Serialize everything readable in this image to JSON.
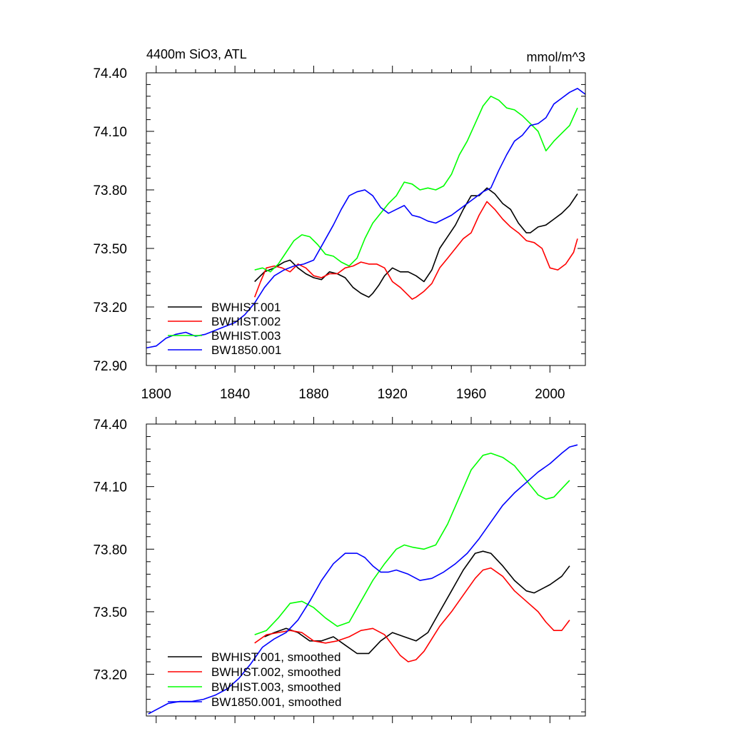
{
  "figure": {
    "title_left": "4400m SiO3, ATL",
    "title_right": "mmol/m^3"
  },
  "chart_data": [
    {
      "type": "line",
      "title": "4400m SiO3, ATL",
      "units": "mmol/m^3",
      "xlim": [
        1795,
        2018
      ],
      "ylim": [
        72.9,
        74.4
      ],
      "x_ticks": [
        1800,
        1840,
        1880,
        1920,
        1960,
        2000
      ],
      "x_tick_labels": [
        "1800",
        "1840",
        "1880",
        "1920",
        "1960",
        "2000"
      ],
      "y_ticks": [
        72.9,
        73.2,
        73.5,
        73.8,
        74.1,
        74.4
      ],
      "y_tick_labels": [
        "72.90",
        "73.20",
        "73.50",
        "73.80",
        "74.10",
        "74.40"
      ],
      "legend_position": "bottom-left",
      "series": [
        {
          "name": "BWHIST.001",
          "color": "#000000",
          "x": [
            1850,
            1855,
            1860,
            1865,
            1868,
            1872,
            1876,
            1880,
            1884,
            1888,
            1892,
            1896,
            1900,
            1904,
            1908,
            1910,
            1913,
            1916,
            1920,
            1924,
            1928,
            1932,
            1936,
            1940,
            1944,
            1948,
            1952,
            1956,
            1960,
            1964,
            1968,
            1972,
            1976,
            1980,
            1984,
            1988,
            1990,
            1994,
            1998,
            2002,
            2006,
            2010,
            2014
          ],
          "y": [
            73.33,
            73.38,
            73.4,
            73.43,
            73.44,
            73.4,
            73.37,
            73.35,
            73.34,
            73.38,
            73.37,
            73.35,
            73.3,
            73.27,
            73.25,
            73.27,
            73.31,
            73.36,
            73.4,
            73.38,
            73.38,
            73.36,
            73.33,
            73.39,
            73.5,
            73.56,
            73.62,
            73.7,
            73.77,
            73.77,
            73.81,
            73.78,
            73.73,
            73.7,
            73.63,
            73.58,
            73.58,
            73.61,
            73.62,
            73.65,
            73.68,
            73.72,
            73.78
          ]
        },
        {
          "name": "BWHIST.002",
          "color": "#ff0000",
          "x": [
            1850,
            1853,
            1856,
            1860,
            1864,
            1868,
            1872,
            1876,
            1880,
            1884,
            1888,
            1892,
            1896,
            1900,
            1904,
            1908,
            1912,
            1916,
            1920,
            1924,
            1928,
            1930,
            1932,
            1936,
            1940,
            1944,
            1948,
            1952,
            1956,
            1960,
            1964,
            1968,
            1972,
            1976,
            1980,
            1984,
            1988,
            1992,
            1996,
            2000,
            2004,
            2008,
            2012,
            2014
          ],
          "y": [
            73.25,
            73.33,
            73.4,
            73.41,
            73.4,
            73.38,
            73.42,
            73.4,
            73.36,
            73.35,
            73.37,
            73.37,
            73.4,
            73.41,
            73.43,
            73.42,
            73.42,
            73.4,
            73.33,
            73.3,
            73.26,
            73.24,
            73.25,
            73.28,
            73.32,
            73.4,
            73.45,
            73.5,
            73.55,
            73.58,
            73.67,
            73.74,
            73.7,
            73.65,
            73.61,
            73.58,
            73.54,
            73.53,
            73.5,
            73.4,
            73.39,
            73.42,
            73.48,
            73.55
          ]
        },
        {
          "name": "BWHIST.003",
          "color": "#00ff00",
          "x": [
            1850,
            1854,
            1858,
            1862,
            1866,
            1870,
            1874,
            1878,
            1882,
            1886,
            1890,
            1894,
            1898,
            1902,
            1906,
            1910,
            1914,
            1918,
            1922,
            1926,
            1930,
            1934,
            1938,
            1942,
            1946,
            1950,
            1954,
            1958,
            1962,
            1966,
            1970,
            1974,
            1978,
            1982,
            1986,
            1990,
            1994,
            1998,
            2002,
            2006,
            2010,
            2014
          ],
          "y": [
            73.39,
            73.4,
            73.38,
            73.42,
            73.48,
            73.54,
            73.57,
            73.56,
            73.52,
            73.47,
            73.46,
            73.43,
            73.41,
            73.45,
            73.55,
            73.63,
            73.68,
            73.73,
            73.77,
            73.84,
            73.83,
            73.8,
            73.81,
            73.8,
            73.82,
            73.88,
            73.98,
            74.05,
            74.14,
            74.23,
            74.28,
            74.26,
            74.22,
            74.21,
            74.18,
            74.14,
            74.1,
            74.0,
            74.05,
            74.09,
            74.13,
            74.22
          ]
        },
        {
          "name": "BW1850.001",
          "color": "#0000ff",
          "x": [
            1795,
            1800,
            1805,
            1810,
            1815,
            1820,
            1825,
            1830,
            1835,
            1840,
            1845,
            1850,
            1855,
            1860,
            1865,
            1870,
            1875,
            1880,
            1885,
            1890,
            1894,
            1898,
            1902,
            1906,
            1910,
            1914,
            1918,
            1922,
            1926,
            1930,
            1934,
            1938,
            1942,
            1946,
            1950,
            1954,
            1958,
            1962,
            1966,
            1970,
            1974,
            1978,
            1982,
            1986,
            1990,
            1994,
            1998,
            2002,
            2006,
            2010,
            2014,
            2018
          ],
          "y": [
            72.99,
            73.0,
            73.04,
            73.06,
            73.07,
            73.05,
            73.06,
            73.08,
            73.1,
            73.12,
            73.16,
            73.22,
            73.3,
            73.36,
            73.39,
            73.41,
            73.42,
            73.44,
            73.53,
            73.62,
            73.7,
            73.77,
            73.79,
            73.8,
            73.77,
            73.71,
            73.68,
            73.7,
            73.72,
            73.67,
            73.66,
            73.64,
            73.63,
            73.65,
            73.67,
            73.7,
            73.73,
            73.76,
            73.79,
            73.81,
            73.9,
            73.98,
            74.05,
            74.08,
            74.13,
            74.14,
            74.17,
            74.24,
            74.27,
            74.3,
            74.32,
            74.29
          ]
        }
      ]
    },
    {
      "type": "line",
      "xlim": [
        1795,
        2018
      ],
      "ylim": [
        73.0,
        74.4
      ],
      "x_ticks": [
        1800,
        1840,
        1880,
        1920,
        1960,
        2000
      ],
      "y_ticks": [
        73.2,
        73.5,
        73.8,
        74.1,
        74.4
      ],
      "y_tick_labels": [
        "73.20",
        "73.50",
        "73.80",
        "74.10",
        "74.40"
      ],
      "legend_position": "bottom-left",
      "series": [
        {
          "name": "BWHIST.001, smoothed",
          "color": "#000000",
          "x": [
            1855,
            1860,
            1866,
            1872,
            1878,
            1884,
            1890,
            1896,
            1902,
            1908,
            1914,
            1920,
            1926,
            1932,
            1938,
            1944,
            1950,
            1956,
            1962,
            1966,
            1970,
            1976,
            1982,
            1988,
            1992,
            1996,
            2000,
            2006,
            2010
          ],
          "y": [
            73.38,
            73.4,
            73.42,
            73.4,
            73.36,
            73.36,
            73.38,
            73.34,
            73.3,
            73.3,
            73.36,
            73.4,
            73.38,
            73.36,
            73.4,
            73.5,
            73.6,
            73.7,
            73.78,
            73.79,
            73.78,
            73.72,
            73.65,
            73.6,
            73.59,
            73.61,
            73.63,
            73.67,
            73.72
          ]
        },
        {
          "name": "BWHIST.002, smoothed",
          "color": "#ff0000",
          "x": [
            1850,
            1856,
            1862,
            1868,
            1874,
            1880,
            1886,
            1892,
            1898,
            1904,
            1910,
            1916,
            1920,
            1924,
            1928,
            1932,
            1936,
            1940,
            1944,
            1950,
            1956,
            1962,
            1966,
            1970,
            1976,
            1982,
            1988,
            1994,
            1998,
            2002,
            2006,
            2010
          ],
          "y": [
            73.35,
            73.39,
            73.4,
            73.41,
            73.4,
            73.36,
            73.35,
            73.36,
            73.38,
            73.41,
            73.42,
            73.39,
            73.34,
            73.29,
            73.26,
            73.27,
            73.31,
            73.37,
            73.43,
            73.5,
            73.58,
            73.66,
            73.7,
            73.71,
            73.67,
            73.6,
            73.55,
            73.5,
            73.45,
            73.41,
            73.41,
            73.46
          ]
        },
        {
          "name": "BWHIST.003, smoothed",
          "color": "#00ff00",
          "x": [
            1850,
            1856,
            1862,
            1868,
            1874,
            1880,
            1886,
            1892,
            1898,
            1904,
            1910,
            1916,
            1922,
            1926,
            1930,
            1936,
            1942,
            1948,
            1954,
            1960,
            1966,
            1970,
            1976,
            1982,
            1988,
            1994,
            1998,
            2002,
            2006,
            2010
          ],
          "y": [
            73.39,
            73.41,
            73.47,
            73.54,
            73.55,
            73.52,
            73.47,
            73.43,
            73.45,
            73.55,
            73.65,
            73.73,
            73.8,
            73.82,
            73.81,
            73.8,
            73.82,
            73.92,
            74.05,
            74.18,
            74.25,
            74.26,
            74.24,
            74.2,
            74.13,
            74.06,
            74.04,
            74.05,
            74.09,
            74.13
          ]
        },
        {
          "name": "BW1850.001, smoothed",
          "color": "#0000ff",
          "x": [
            1796,
            1800,
            1806,
            1812,
            1818,
            1824,
            1830,
            1836,
            1842,
            1848,
            1854,
            1860,
            1866,
            1872,
            1878,
            1884,
            1890,
            1896,
            1902,
            1906,
            1910,
            1914,
            1918,
            1922,
            1928,
            1934,
            1940,
            1946,
            1952,
            1958,
            1964,
            1970,
            1976,
            1982,
            1988,
            1994,
            2000,
            2006,
            2010,
            2014
          ],
          "y": [
            73.01,
            73.03,
            73.06,
            73.07,
            73.07,
            73.08,
            73.1,
            73.13,
            73.18,
            73.25,
            73.33,
            73.37,
            73.4,
            73.46,
            73.55,
            73.65,
            73.73,
            73.78,
            73.78,
            73.76,
            73.72,
            73.69,
            73.69,
            73.7,
            73.68,
            73.65,
            73.66,
            73.69,
            73.73,
            73.78,
            73.85,
            73.93,
            74.01,
            74.07,
            74.12,
            74.17,
            74.21,
            74.26,
            74.29,
            74.3
          ]
        }
      ]
    }
  ]
}
